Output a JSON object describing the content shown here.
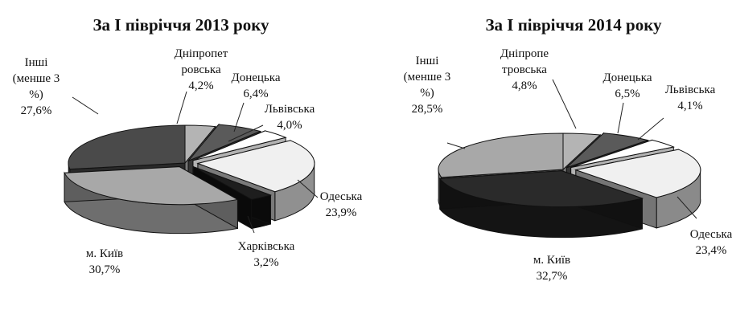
{
  "chart_data": [
    {
      "type": "pie",
      "title": "За І півріччя 2013 року",
      "slices": [
        {
          "label": [
            "Дніпропет",
            "ровська"
          ],
          "value": "4,2%",
          "pct": 4.2,
          "color": "#b4b4b4",
          "side": "#8c8c8c"
        },
        {
          "label": [
            "Донецька"
          ],
          "value": "6,4%",
          "pct": 6.4,
          "color": "#5a5a5a",
          "side": "#3e3e3e"
        },
        {
          "label": [
            "Львівська"
          ],
          "value": "4,0%",
          "pct": 4.0,
          "color": "#ffffff",
          "side": "#d2d2d2"
        },
        {
          "label": [
            "Одеська"
          ],
          "value": "23,9%",
          "pct": 23.9,
          "color": "#f0f0f0",
          "side": "#909090"
        },
        {
          "label": [
            "Харківська"
          ],
          "value": "3,2%",
          "pct": 3.2,
          "color": "#1e1e1e",
          "side": "#0c0c0c"
        },
        {
          "label": [
            "м. Київ"
          ],
          "value": "30,7%",
          "pct": 30.7,
          "color": "#a8a8a8",
          "side": "#6e6e6e"
        },
        {
          "label": [
            "Інші",
            "(менше 3",
            "%)"
          ],
          "value": "27,6%",
          "pct": 27.6,
          "color": "#4a4a4a",
          "side": "#303030"
        }
      ]
    },
    {
      "type": "pie",
      "title": "За І півріччя 2014 року",
      "slices": [
        {
          "label": [
            "Дніпропе",
            "тровська"
          ],
          "value": "4,8%",
          "pct": 4.8,
          "color": "#b4b4b4",
          "side": "#8c8c8c"
        },
        {
          "label": [
            "Донецька"
          ],
          "value": "6,5%",
          "pct": 6.5,
          "color": "#5a5a5a",
          "side": "#3e3e3e"
        },
        {
          "label": [
            "Львівська"
          ],
          "value": "4,1%",
          "pct": 4.1,
          "color": "#ffffff",
          "side": "#d2d2d2"
        },
        {
          "label": [
            "Одеська"
          ],
          "value": "23,4%",
          "pct": 23.4,
          "color": "#f0f0f0",
          "side": "#8a8a8a"
        },
        {
          "label": [
            "м. Київ"
          ],
          "value": "32,7%",
          "pct": 32.7,
          "color": "#2a2a2a",
          "side": "#141414"
        },
        {
          "label": [
            "Інші",
            "(менше 3",
            "%)"
          ],
          "value": "28,5%",
          "pct": 28.5,
          "color": "#a8a8a8",
          "side": "#6e6e6e"
        }
      ]
    }
  ]
}
